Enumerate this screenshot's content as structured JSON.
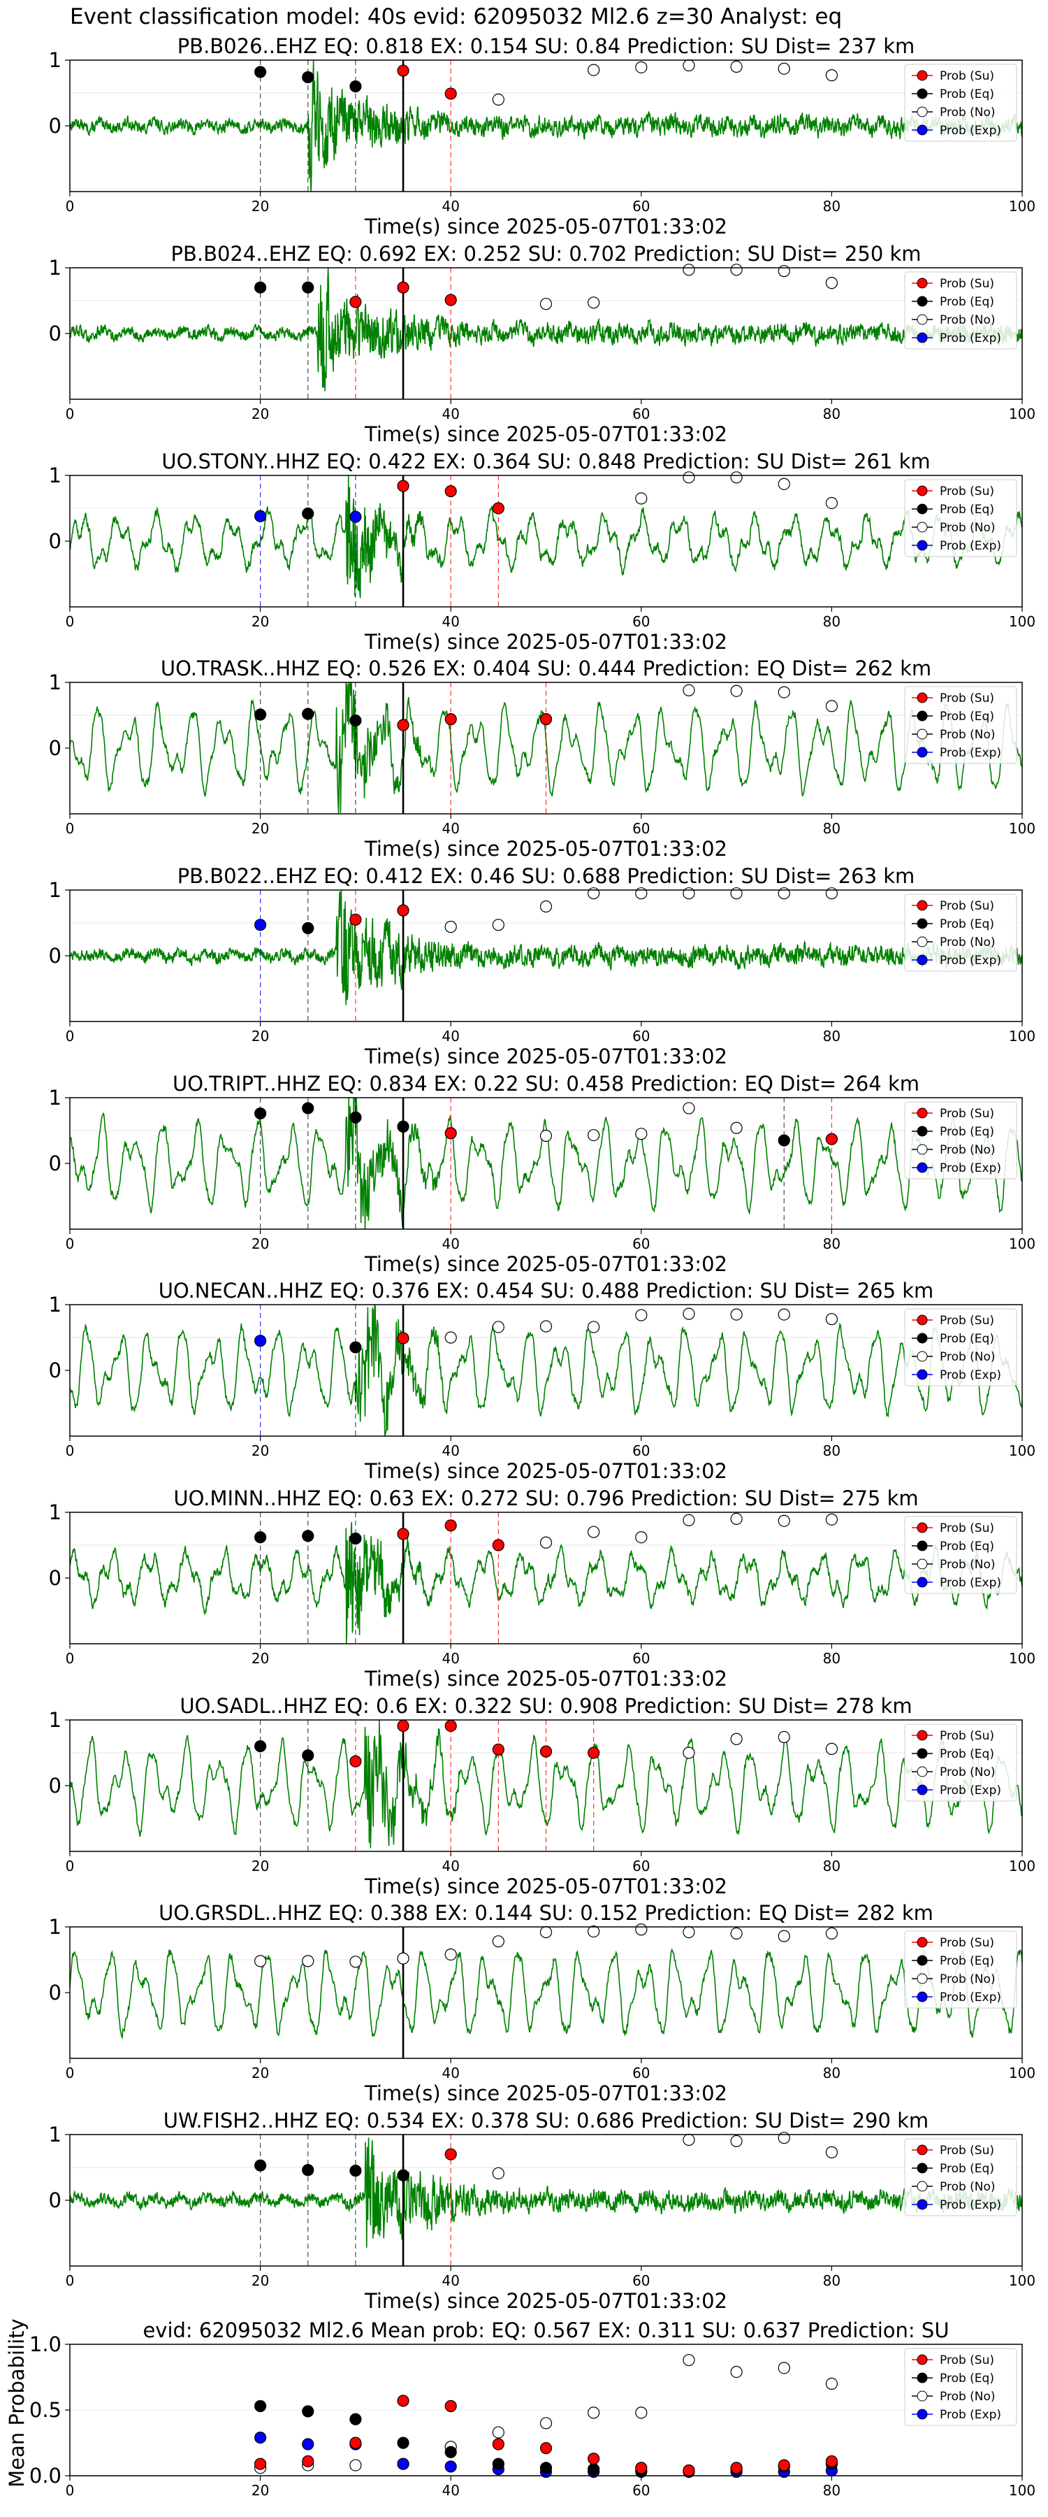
{
  "figure_title": "Event classification model: 40s evid: 62095032 Ml2.6 z=30 Analyst: eq",
  "colors": {
    "waveform": "#008000",
    "su_marker": "#ff0000",
    "eq_marker": "#000000",
    "no_marker": "#ffffff",
    "exp_marker": "#0000ff",
    "su_line": "#ff0000",
    "eq_line": "#000000",
    "exp_line": "#0000ff",
    "origin_line": "#000000"
  },
  "legend": [
    "Prob (Su)",
    "Prob (Eq)",
    "Prob (No)",
    "Prob (Exp)"
  ],
  "chart_data": [
    {
      "type": "line",
      "title": "PB.B026..EHZ   EQ: 0.818  EX: 0.154  SU: 0.84   Prediction: SU    Dist= 237 km",
      "xlabel": "Time(s) since 2025-05-07T01:33:02",
      "xlim": [
        0,
        100
      ],
      "ylim": [
        -1,
        1
      ],
      "xticks": [
        0,
        20,
        40,
        60,
        80,
        100
      ],
      "yticks": [
        0,
        1
      ],
      "origin_time": 35,
      "waveform_style": "noisy",
      "onset": 25,
      "su": [
        [
          35,
          0.84
        ],
        [
          40,
          0.49
        ]
      ],
      "eq": [
        [
          20,
          0.82
        ],
        [
          25,
          0.74
        ],
        [
          30,
          0.6
        ]
      ],
      "no": [
        [
          45,
          0.4
        ],
        [
          55,
          0.85
        ],
        [
          60,
          0.89
        ],
        [
          65,
          0.92
        ],
        [
          70,
          0.9
        ],
        [
          75,
          0.87
        ],
        [
          80,
          0.77
        ]
      ],
      "exp": [],
      "legend": [
        "Prob (Su)",
        "Prob (Eq)",
        "Prob (No)",
        "Prob (Exp)"
      ]
    },
    {
      "type": "line",
      "title": "PB.B024..EHZ   EQ: 0.692  EX: 0.252  SU: 0.702   Prediction: SU    Dist= 250 km",
      "xlabel": "Time(s) since 2025-05-07T01:33:02",
      "xlim": [
        0,
        100
      ],
      "ylim": [
        -1,
        1
      ],
      "xticks": [
        0,
        20,
        40,
        60,
        80,
        100
      ],
      "yticks": [
        0,
        1
      ],
      "origin_time": 35,
      "waveform_style": "noisy",
      "onset": 26,
      "su": [
        [
          30,
          0.48
        ],
        [
          35,
          0.7
        ],
        [
          40,
          0.51
        ]
      ],
      "eq": [
        [
          20,
          0.7
        ],
        [
          25,
          0.7
        ]
      ],
      "no": [
        [
          50,
          0.45
        ],
        [
          55,
          0.47
        ],
        [
          65,
          0.97
        ],
        [
          70,
          0.97
        ],
        [
          75,
          0.95
        ],
        [
          80,
          0.77
        ]
      ],
      "exp": [],
      "legend": [
        "Prob (Su)",
        "Prob (Eq)",
        "Prob (No)",
        "Prob (Exp)"
      ]
    },
    {
      "type": "line",
      "title": "UO.STONY..HHZ   EQ: 0.422  EX: 0.364  SU: 0.848   Prediction: SU    Dist= 261 km",
      "xlabel": "Time(s) since 2025-05-07T01:33:02",
      "xlim": [
        0,
        100
      ],
      "ylim": [
        -1,
        1
      ],
      "xticks": [
        0,
        20,
        40,
        60,
        80,
        100
      ],
      "yticks": [
        0,
        1
      ],
      "origin_time": 35,
      "waveform_style": "mixed",
      "onset": 29,
      "su": [
        [
          35,
          0.84
        ],
        [
          40,
          0.76
        ],
        [
          45,
          0.5
        ]
      ],
      "eq": [
        [
          25,
          0.42
        ]
      ],
      "no": [
        [
          60,
          0.65
        ],
        [
          65,
          0.97
        ],
        [
          70,
          0.97
        ],
        [
          75,
          0.87
        ],
        [
          80,
          0.58
        ]
      ],
      "exp": [
        [
          20,
          0.38
        ],
        [
          30,
          0.37
        ]
      ],
      "legend": [
        "Prob (Su)",
        "Prob (Eq)",
        "Prob (No)",
        "Prob (Exp)"
      ]
    },
    {
      "type": "line",
      "title": "UO.TRASK..HHZ   EQ: 0.526  EX: 0.404  SU: 0.444   Prediction: EQ    Dist= 262 km",
      "xlabel": "Time(s) since 2025-05-07T01:33:02",
      "xlim": [
        0,
        100
      ],
      "ylim": [
        -1,
        1
      ],
      "xticks": [
        0,
        20,
        40,
        60,
        80,
        100
      ],
      "yticks": [
        0,
        1
      ],
      "origin_time": 35,
      "waveform_style": "smooth",
      "onset": 28,
      "su": [
        [
          35,
          0.35
        ],
        [
          40,
          0.44
        ],
        [
          50,
          0.44
        ]
      ],
      "eq": [
        [
          20,
          0.51
        ],
        [
          25,
          0.52
        ],
        [
          30,
          0.42
        ]
      ],
      "no": [
        [
          65,
          0.88
        ],
        [
          70,
          0.87
        ],
        [
          75,
          0.85
        ],
        [
          80,
          0.64
        ]
      ],
      "exp": [],
      "legend": [
        "Prob (Su)",
        "Prob (Eq)",
        "Prob (No)",
        "Prob (Exp)"
      ]
    },
    {
      "type": "line",
      "title": "PB.B022..EHZ   EQ: 0.412  EX: 0.46  SU: 0.688   Prediction: SU    Dist= 263 km",
      "xlabel": "Time(s) since 2025-05-07T01:33:02",
      "xlim": [
        0,
        100
      ],
      "ylim": [
        -1,
        1
      ],
      "xticks": [
        0,
        20,
        40,
        60,
        80,
        100
      ],
      "yticks": [
        0,
        1
      ],
      "origin_time": 35,
      "waveform_style": "noisy",
      "onset": 28,
      "su": [
        [
          30,
          0.55
        ],
        [
          35,
          0.69
        ]
      ],
      "eq": [
        [
          25,
          0.42
        ]
      ],
      "no": [
        [
          40,
          0.44
        ],
        [
          45,
          0.47
        ],
        [
          50,
          0.75
        ],
        [
          55,
          0.95
        ],
        [
          60,
          0.95
        ],
        [
          65,
          0.95
        ],
        [
          70,
          0.95
        ],
        [
          75,
          0.95
        ],
        [
          80,
          0.95
        ]
      ],
      "exp": [
        [
          20,
          0.47
        ]
      ],
      "legend": [
        "Prob (Su)",
        "Prob (Eq)",
        "Prob (No)",
        "Prob (Exp)"
      ]
    },
    {
      "type": "line",
      "title": "UO.TRIPT..HHZ   EQ: 0.834  EX: 0.22  SU: 0.458   Prediction: EQ    Dist= 264 km",
      "xlabel": "Time(s) since 2025-05-07T01:33:02",
      "xlim": [
        0,
        100
      ],
      "ylim": [
        -1,
        1
      ],
      "xticks": [
        0,
        20,
        40,
        60,
        80,
        100
      ],
      "yticks": [
        0,
        1
      ],
      "origin_time": 35,
      "waveform_style": "smooth",
      "onset": 29,
      "su": [
        [
          40,
          0.46
        ],
        [
          80,
          0.37
        ]
      ],
      "eq": [
        [
          20,
          0.76
        ],
        [
          25,
          0.84
        ],
        [
          30,
          0.7
        ],
        [
          35,
          0.56
        ],
        [
          75,
          0.35
        ]
      ],
      "no": [
        [
          50,
          0.42
        ],
        [
          55,
          0.43
        ],
        [
          60,
          0.45
        ],
        [
          65,
          0.84
        ],
        [
          70,
          0.54
        ]
      ],
      "exp": [],
      "legend": [
        "Prob (Su)",
        "Prob (Eq)",
        "Prob (No)",
        "Prob (Exp)"
      ]
    },
    {
      "type": "line",
      "title": "UO.NECAN..HHZ   EQ: 0.376  EX: 0.454  SU: 0.488   Prediction: SU    Dist= 265 km",
      "xlabel": "Time(s) since 2025-05-07T01:33:02",
      "xlim": [
        0,
        100
      ],
      "ylim": [
        -1,
        1
      ],
      "xticks": [
        0,
        20,
        40,
        60,
        80,
        100
      ],
      "yticks": [
        0,
        1
      ],
      "origin_time": 35,
      "waveform_style": "smooth",
      "onset": 30,
      "su": [
        [
          35,
          0.49
        ]
      ],
      "eq": [
        [
          30,
          0.35
        ]
      ],
      "no": [
        [
          40,
          0.5
        ],
        [
          45,
          0.66
        ],
        [
          50,
          0.67
        ],
        [
          55,
          0.66
        ],
        [
          60,
          0.84
        ],
        [
          65,
          0.86
        ],
        [
          70,
          0.85
        ],
        [
          75,
          0.85
        ],
        [
          80,
          0.78
        ]
      ],
      "exp": [
        [
          20,
          0.45
        ]
      ],
      "legend": [
        "Prob (Su)",
        "Prob (Eq)",
        "Prob (No)",
        "Prob (Exp)"
      ]
    },
    {
      "type": "line",
      "title": "UO.MINN..HHZ   EQ: 0.63  EX: 0.272  SU: 0.796   Prediction: SU    Dist= 275 km",
      "xlabel": "Time(s) since 2025-05-07T01:33:02",
      "xlim": [
        0,
        100
      ],
      "ylim": [
        -1,
        1
      ],
      "xticks": [
        0,
        20,
        40,
        60,
        80,
        100
      ],
      "yticks": [
        0,
        1
      ],
      "origin_time": 35,
      "waveform_style": "mixed",
      "onset": 29,
      "su": [
        [
          35,
          0.67
        ],
        [
          40,
          0.8
        ],
        [
          45,
          0.5
        ]
      ],
      "eq": [
        [
          20,
          0.62
        ],
        [
          25,
          0.64
        ],
        [
          30,
          0.6
        ]
      ],
      "no": [
        [
          50,
          0.54
        ],
        [
          55,
          0.7
        ],
        [
          60,
          0.62
        ],
        [
          65,
          0.88
        ],
        [
          70,
          0.9
        ],
        [
          75,
          0.87
        ],
        [
          80,
          0.89
        ]
      ],
      "exp": [],
      "legend": [
        "Prob (Su)",
        "Prob (Eq)",
        "Prob (No)",
        "Prob (Exp)"
      ]
    },
    {
      "type": "line",
      "title": "UO.SADL..HHZ   EQ: 0.6  EX: 0.322  SU: 0.908   Prediction: SU    Dist= 278 km",
      "xlabel": "Time(s) since 2025-05-07T01:33:02",
      "xlim": [
        0,
        100
      ],
      "ylim": [
        -1,
        1
      ],
      "xticks": [
        0,
        20,
        40,
        60,
        80,
        100
      ],
      "yticks": [
        0,
        1
      ],
      "origin_time": 35,
      "waveform_style": "smooth",
      "onset": 31,
      "su": [
        [
          30,
          0.37
        ],
        [
          35,
          0.91
        ],
        [
          40,
          0.91
        ],
        [
          45,
          0.55
        ],
        [
          50,
          0.52
        ],
        [
          55,
          0.5
        ]
      ],
      "eq": [
        [
          20,
          0.6
        ],
        [
          25,
          0.46
        ]
      ],
      "no": [
        [
          65,
          0.5
        ],
        [
          70,
          0.71
        ],
        [
          75,
          0.74
        ],
        [
          80,
          0.56
        ]
      ],
      "exp": [],
      "legend": [
        "Prob (Su)",
        "Prob (Eq)",
        "Prob (No)",
        "Prob (Exp)"
      ]
    },
    {
      "type": "line",
      "title": "UO.GRSDL..HHZ   EQ: 0.388  EX: 0.144  SU: 0.152   Prediction: EQ    Dist= 282 km",
      "xlabel": "Time(s) since 2025-05-07T01:33:02",
      "xlim": [
        0,
        100
      ],
      "ylim": [
        -1,
        1
      ],
      "xticks": [
        0,
        20,
        40,
        60,
        80,
        100
      ],
      "yticks": [
        0,
        1
      ],
      "origin_time": 35,
      "waveform_style": "smooth",
      "onset": null,
      "su": [],
      "eq": [],
      "no": [
        [
          20,
          0.48
        ],
        [
          25,
          0.48
        ],
        [
          30,
          0.47
        ],
        [
          35,
          0.52
        ],
        [
          40,
          0.58
        ],
        [
          45,
          0.78
        ],
        [
          50,
          0.92
        ],
        [
          55,
          0.93
        ],
        [
          60,
          0.96
        ],
        [
          65,
          0.92
        ],
        [
          70,
          0.9
        ],
        [
          75,
          0.86
        ],
        [
          80,
          0.9
        ]
      ],
      "exp": [],
      "legend": [
        "Prob (Su)",
        "Prob (Eq)",
        "Prob (No)",
        "Prob (Exp)"
      ]
    },
    {
      "type": "line",
      "title": "UW.FISH2..HHZ   EQ: 0.534  EX: 0.378  SU: 0.686   Prediction: SU    Dist= 290 km",
      "xlabel": "Time(s) since 2025-05-07T01:33:02",
      "xlim": [
        0,
        100
      ],
      "ylim": [
        -1,
        1
      ],
      "xticks": [
        0,
        20,
        40,
        60,
        80,
        100
      ],
      "yticks": [
        0,
        1
      ],
      "origin_time": 35,
      "waveform_style": "noisy",
      "onset": 31,
      "su": [
        [
          40,
          0.7
        ]
      ],
      "eq": [
        [
          20,
          0.53
        ],
        [
          25,
          0.46
        ],
        [
          30,
          0.45
        ],
        [
          35,
          0.38
        ]
      ],
      "no": [
        [
          45,
          0.41
        ],
        [
          65,
          0.92
        ],
        [
          70,
          0.9
        ],
        [
          75,
          0.95
        ],
        [
          80,
          0.73
        ]
      ],
      "exp": [],
      "legend": [
        "Prob (Su)",
        "Prob (Eq)",
        "Prob (No)",
        "Prob (Exp)"
      ]
    },
    {
      "type": "scatter",
      "title": "evid: 62095032  Ml2.6   Mean prob:   EQ: 0.567  EX: 0.311  SU: 0.637   Prediction: SU",
      "ylabel": "Mean Probability",
      "xlim": [
        0,
        100
      ],
      "ylim": [
        0,
        1
      ],
      "xticks": [
        0,
        20,
        40,
        60,
        80,
        100
      ],
      "yticks": [
        0,
        0.5,
        1
      ],
      "ytick_labels": [
        "0.0",
        "0.5",
        "1.0"
      ],
      "su": [
        [
          20,
          0.09
        ],
        [
          25,
          0.11
        ],
        [
          30,
          0.25
        ],
        [
          35,
          0.57
        ],
        [
          40,
          0.53
        ],
        [
          45,
          0.24
        ],
        [
          50,
          0.21
        ],
        [
          55,
          0.13
        ],
        [
          60,
          0.06
        ],
        [
          65,
          0.04
        ],
        [
          70,
          0.06
        ],
        [
          75,
          0.08
        ],
        [
          80,
          0.11
        ]
      ],
      "eq": [
        [
          20,
          0.53
        ],
        [
          25,
          0.49
        ],
        [
          30,
          0.43
        ],
        [
          35,
          0.25
        ],
        [
          40,
          0.18
        ],
        [
          45,
          0.09
        ],
        [
          50,
          0.06
        ],
        [
          55,
          0.05
        ],
        [
          60,
          0.04
        ],
        [
          65,
          0.04
        ],
        [
          70,
          0.05
        ],
        [
          75,
          0.07
        ],
        [
          80,
          0.09
        ]
      ],
      "no": [
        [
          20,
          0.06
        ],
        [
          25,
          0.08
        ],
        [
          30,
          0.08
        ],
        [
          35,
          0.09
        ],
        [
          40,
          0.22
        ],
        [
          45,
          0.33
        ],
        [
          50,
          0.4
        ],
        [
          55,
          0.48
        ],
        [
          60,
          0.48
        ],
        [
          65,
          0.88
        ],
        [
          70,
          0.79
        ],
        [
          75,
          0.82
        ],
        [
          80,
          0.7
        ]
      ],
      "exp": [
        [
          20,
          0.29
        ],
        [
          25,
          0.24
        ],
        [
          30,
          0.24
        ],
        [
          35,
          0.09
        ],
        [
          40,
          0.07
        ],
        [
          45,
          0.05
        ],
        [
          50,
          0.03
        ],
        [
          55,
          0.03
        ],
        [
          60,
          0.03
        ],
        [
          65,
          0.03
        ],
        [
          70,
          0.03
        ],
        [
          75,
          0.03
        ],
        [
          80,
          0.04
        ]
      ],
      "legend": [
        "Prob (Su)",
        "Prob (Eq)",
        "Prob (No)",
        "Prob (Exp)"
      ]
    }
  ]
}
